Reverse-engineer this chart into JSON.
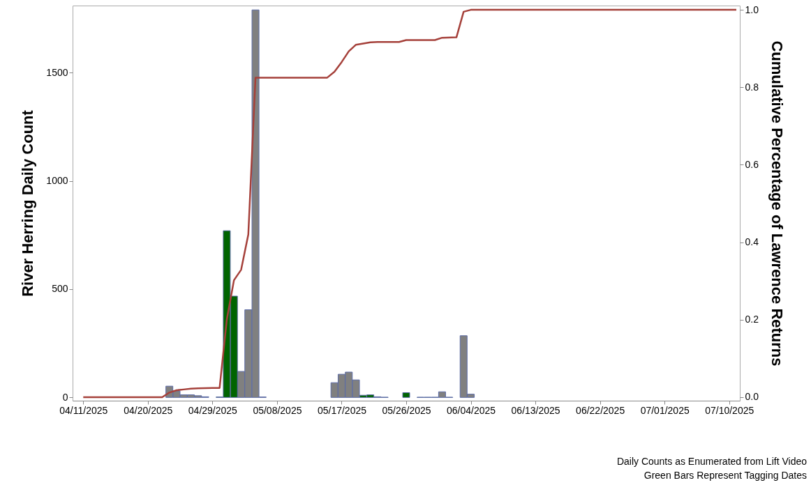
{
  "chart_data": {
    "type": "bar",
    "ylabel": "River Herring Daily Count",
    "y2label": "Cumulative Percentage of Lawrence Returns",
    "xlim": [
      "2025-04-10",
      "2025-07-11"
    ],
    "xticks": [
      {
        "value": "2025-04-11",
        "label": "04/11/2025"
      },
      {
        "value": "2025-04-20",
        "label": "04/20/2025"
      },
      {
        "value": "2025-04-29",
        "label": "04/29/2025"
      },
      {
        "value": "2025-05-08",
        "label": "05/08/2025"
      },
      {
        "value": "2025-05-17",
        "label": "05/17/2025"
      },
      {
        "value": "2025-05-26",
        "label": "05/26/2025"
      },
      {
        "value": "2025-06-04",
        "label": "06/04/2025"
      },
      {
        "value": "2025-06-13",
        "label": "06/13/2025"
      },
      {
        "value": "2025-06-22",
        "label": "06/22/2025"
      },
      {
        "value": "2025-07-01",
        "label": "07/01/2025"
      },
      {
        "value": "2025-07-10",
        "label": "07/10/2025"
      }
    ],
    "ylim": [
      -15,
      1810
    ],
    "yticks": [
      0,
      500,
      1000,
      1500
    ],
    "y2lim": [
      -0.009,
      1.011
    ],
    "y2ticks": [
      {
        "value": 0,
        "label": "0.0"
      },
      {
        "value": 0.2,
        "label": "0.2"
      },
      {
        "value": 0.4,
        "label": "0.4"
      },
      {
        "value": 0.6,
        "label": "0.6"
      },
      {
        "value": 0.8,
        "label": "0.8"
      },
      {
        "value": 1,
        "label": "1.0"
      }
    ],
    "series": [
      {
        "color": "#808080",
        "x": [
          "2025-04-23",
          "2025-04-24",
          "2025-04-25",
          "2025-04-26",
          "2025-04-27",
          "2025-04-28",
          "2025-05-03",
          "2025-05-04",
          "2025-05-05",
          "2025-05-06",
          "2025-05-16",
          "2025-05-17",
          "2025-05-18",
          "2025-05-19",
          "2025-05-22",
          "2025-05-31",
          "2025-06-03",
          "2025-06-04"
        ],
        "values": [
          52,
          30,
          12,
          12,
          8,
          3,
          120,
          405,
          1790,
          2,
          68,
          107,
          117,
          81,
          3,
          26,
          285,
          15
        ]
      },
      {
        "color": "#006400",
        "x": [
          "2025-04-30",
          "2025-05-01",
          "2025-05-02",
          "2025-05-20",
          "2025-05-21",
          "2025-05-23",
          "2025-05-26",
          "2025-05-28",
          "2025-05-29",
          "2025-05-30",
          "2025-06-01"
        ],
        "values": [
          2,
          770,
          468,
          10,
          12,
          1,
          22,
          1,
          1,
          1,
          1
        ]
      },
      {
        "type": "line",
        "axis": "y2",
        "color": "#a5403a",
        "x": [
          "2025-04-11",
          "2025-04-22",
          "2025-04-23",
          "2025-04-24",
          "2025-04-25",
          "2025-04-26",
          "2025-04-27",
          "2025-04-29",
          "2025-04-30",
          "2025-05-01",
          "2025-05-02",
          "2025-05-03",
          "2025-05-04",
          "2025-05-05",
          "2025-05-15",
          "2025-05-16",
          "2025-05-17",
          "2025-05-18",
          "2025-05-19",
          "2025-05-20",
          "2025-05-21",
          "2025-05-22",
          "2025-05-25",
          "2025-05-26",
          "2025-05-30",
          "2025-05-31",
          "2025-06-02",
          "2025-06-03",
          "2025-06-04",
          "2025-07-11"
        ],
        "values": [
          0,
          0,
          0.012,
          0.018,
          0.02,
          0.022,
          0.023,
          0.024,
          0.024,
          0.2,
          0.302,
          0.329,
          0.42,
          0.825,
          0.825,
          0.84,
          0.865,
          0.893,
          0.91,
          0.913,
          0.916,
          0.917,
          0.917,
          0.922,
          0.922,
          0.928,
          0.929,
          0.995,
          1,
          1
        ]
      }
    ],
    "annotations": [
      "Daily Counts as Enumerated from Lift Video",
      "Green Bars Represent Tagging Dates"
    ]
  }
}
